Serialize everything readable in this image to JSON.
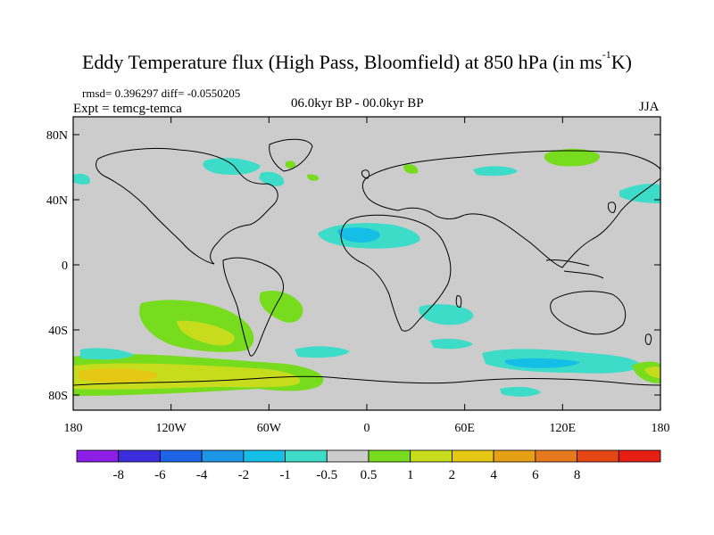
{
  "title": {
    "main": "Eddy Temperature flux (High Pass, Bloomfield) at 850 hPa (in ms",
    "sup": "-1",
    "tail": "K)"
  },
  "stats": "rmsd= 0.396297 diff= -0.0550205",
  "experiment": "Expt = temcg-temca",
  "period": "06.0kyr BP - 00.0kyr BP",
  "season": "JJA",
  "axes": {
    "y_ticks": [
      {
        "label": "80N",
        "lat": 80
      },
      {
        "label": "40N",
        "lat": 40
      },
      {
        "label": "0",
        "lat": 0
      },
      {
        "label": "40S",
        "lat": -40
      },
      {
        "label": "80S",
        "lat": -80
      }
    ],
    "x_ticks": [
      {
        "label": "180",
        "lon": -180
      },
      {
        "label": "120W",
        "lon": -120
      },
      {
        "label": "60W",
        "lon": -60
      },
      {
        "label": "0",
        "lon": 0
      },
      {
        "label": "60E",
        "lon": 60
      },
      {
        "label": "120E",
        "lon": 120
      },
      {
        "label": "180",
        "lon": 180
      }
    ]
  },
  "colorbar": {
    "boxes": [
      "#8c1ee6",
      "#3c2ddc",
      "#1e64e6",
      "#1e96e6",
      "#14bee6",
      "#3cdcc8",
      "#cccccc",
      "#78dc1e",
      "#c8dc1e",
      "#e6c814",
      "#e6a014",
      "#e6781e",
      "#e64614",
      "#e61e14"
    ],
    "labels": [
      "-8",
      "-6",
      "-4",
      "-2",
      "-1",
      "-0.5",
      "0.5",
      "1",
      "2",
      "4",
      "6",
      "8"
    ]
  }
}
